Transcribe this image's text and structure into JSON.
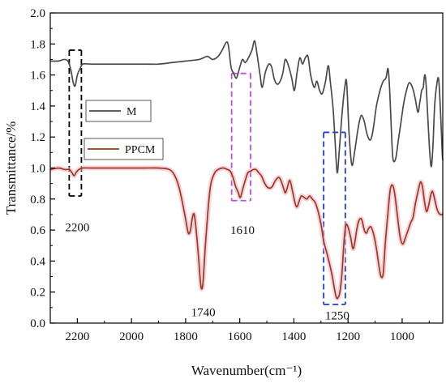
{
  "chart_data": {
    "type": "line",
    "xlabel": "Wavenumber(cm⁻¹)",
    "ylabel": "Transmittance/%",
    "xlim": [
      2300,
      850
    ],
    "ylim": [
      0.0,
      2.0
    ],
    "x_ticks": [
      2200,
      2000,
      1800,
      1600,
      1400,
      1200,
      1000
    ],
    "x_tick_labels": [
      "2200",
      "2000",
      "1800",
      "1600",
      "1400",
      "1200",
      "1000"
    ],
    "y_ticks": [
      0.0,
      0.2,
      0.4,
      0.6,
      0.8,
      1.0,
      1.2,
      1.4,
      1.6,
      1.8,
      2.0
    ],
    "y_tick_labels": [
      "0.0",
      "0.2",
      "0.4",
      "0.6",
      "0.8",
      "1.0",
      "1.2",
      "1.4",
      "1.6",
      "1.8",
      "2.0"
    ],
    "grid": false,
    "legend_position": "left",
    "series": [
      {
        "name": "M",
        "color": "#4a4a4a",
        "points": [
          [
            2300,
            1.69
          ],
          [
            2270,
            1.69
          ],
          [
            2250,
            1.7
          ],
          [
            2235,
            1.69
          ],
          [
            2225,
            1.64
          ],
          [
            2215,
            1.55
          ],
          [
            2208,
            1.53
          ],
          [
            2200,
            1.6
          ],
          [
            2190,
            1.64
          ],
          [
            2180,
            1.67
          ],
          [
            2150,
            1.67
          ],
          [
            2100,
            1.67
          ],
          [
            2050,
            1.67
          ],
          [
            2000,
            1.67
          ],
          [
            1950,
            1.67
          ],
          [
            1900,
            1.67
          ],
          [
            1850,
            1.68
          ],
          [
            1800,
            1.69
          ],
          [
            1750,
            1.7
          ],
          [
            1720,
            1.72
          ],
          [
            1700,
            1.7
          ],
          [
            1680,
            1.72
          ],
          [
            1665,
            1.76
          ],
          [
            1650,
            1.81
          ],
          [
            1642,
            1.79
          ],
          [
            1632,
            1.65
          ],
          [
            1622,
            1.61
          ],
          [
            1612,
            1.58
          ],
          [
            1600,
            1.65
          ],
          [
            1590,
            1.7
          ],
          [
            1580,
            1.68
          ],
          [
            1568,
            1.71
          ],
          [
            1555,
            1.76
          ],
          [
            1545,
            1.82
          ],
          [
            1535,
            1.72
          ],
          [
            1525,
            1.6
          ],
          [
            1517,
            1.52
          ],
          [
            1505,
            1.62
          ],
          [
            1492,
            1.67
          ],
          [
            1482,
            1.65
          ],
          [
            1472,
            1.57
          ],
          [
            1460,
            1.54
          ],
          [
            1448,
            1.57
          ],
          [
            1440,
            1.62
          ],
          [
            1432,
            1.7
          ],
          [
            1420,
            1.66
          ],
          [
            1408,
            1.58
          ],
          [
            1398,
            1.5
          ],
          [
            1388,
            1.62
          ],
          [
            1378,
            1.71
          ],
          [
            1368,
            1.67
          ],
          [
            1358,
            1.71
          ],
          [
            1348,
            1.72
          ],
          [
            1338,
            1.6
          ],
          [
            1325,
            1.52
          ],
          [
            1315,
            1.56
          ],
          [
            1305,
            1.5
          ],
          [
            1295,
            1.48
          ],
          [
            1283,
            1.56
          ],
          [
            1273,
            1.66
          ],
          [
            1265,
            1.55
          ],
          [
            1255,
            1.38
          ],
          [
            1248,
            1.18
          ],
          [
            1240,
            0.97
          ],
          [
            1232,
            1.12
          ],
          [
            1222,
            1.35
          ],
          [
            1212,
            1.52
          ],
          [
            1205,
            1.55
          ],
          [
            1196,
            1.22
          ],
          [
            1186,
            1.02
          ],
          [
            1176,
            1.1
          ],
          [
            1166,
            1.22
          ],
          [
            1158,
            1.3
          ],
          [
            1150,
            1.34
          ],
          [
            1140,
            1.3
          ],
          [
            1130,
            1.22
          ],
          [
            1118,
            1.18
          ],
          [
            1108,
            1.24
          ],
          [
            1095,
            1.4
          ],
          [
            1082,
            1.5
          ],
          [
            1070,
            1.56
          ],
          [
            1060,
            1.58
          ],
          [
            1052,
            1.64
          ],
          [
            1046,
            1.5
          ],
          [
            1040,
            1.25
          ],
          [
            1034,
            1.06
          ],
          [
            1024,
            1.06
          ],
          [
            1014,
            1.18
          ],
          [
            1004,
            1.3
          ],
          [
            994,
            1.42
          ],
          [
            984,
            1.5
          ],
          [
            974,
            1.55
          ],
          [
            962,
            1.52
          ],
          [
            952,
            1.45
          ],
          [
            942,
            1.36
          ],
          [
            935,
            1.42
          ],
          [
            928,
            1.5
          ],
          [
            922,
            1.52
          ],
          [
            917,
            1.6
          ],
          [
            912,
            1.55
          ],
          [
            905,
            1.32
          ],
          [
            898,
            1.1
          ],
          [
            892,
            1.01
          ],
          [
            886,
            1.15
          ],
          [
            880,
            1.4
          ],
          [
            872,
            1.54
          ],
          [
            865,
            1.57
          ],
          [
            858,
            1.35
          ],
          [
            852,
            1.1
          ],
          [
            850,
            1.05
          ]
        ]
      },
      {
        "name": "PPCM",
        "color": "#9b3a1f",
        "points": [
          [
            2300,
            0.99
          ],
          [
            2270,
            1.0
          ],
          [
            2245,
            0.99
          ],
          [
            2230,
            0.99
          ],
          [
            2220,
            0.97
          ],
          [
            2212,
            0.95
          ],
          [
            2205,
            0.97
          ],
          [
            2195,
            0.99
          ],
          [
            2180,
            1.0
          ],
          [
            2150,
            1.0
          ],
          [
            2100,
            1.0
          ],
          [
            2050,
            1.0
          ],
          [
            2000,
            1.0
          ],
          [
            1950,
            1.0
          ],
          [
            1900,
            1.0
          ],
          [
            1860,
            0.99
          ],
          [
            1840,
            0.95
          ],
          [
            1825,
            0.88
          ],
          [
            1812,
            0.78
          ],
          [
            1800,
            0.67
          ],
          [
            1790,
            0.58
          ],
          [
            1782,
            0.6
          ],
          [
            1775,
            0.68
          ],
          [
            1768,
            0.7
          ],
          [
            1760,
            0.58
          ],
          [
            1752,
            0.42
          ],
          [
            1745,
            0.26
          ],
          [
            1740,
            0.22
          ],
          [
            1735,
            0.28
          ],
          [
            1725,
            0.55
          ],
          [
            1710,
            0.86
          ],
          [
            1695,
            0.96
          ],
          [
            1680,
            0.99
          ],
          [
            1660,
            1.0
          ],
          [
            1645,
            0.99
          ],
          [
            1635,
            0.98
          ],
          [
            1625,
            0.94
          ],
          [
            1615,
            0.88
          ],
          [
            1605,
            0.84
          ],
          [
            1598,
            0.81
          ],
          [
            1588,
            0.87
          ],
          [
            1578,
            0.93
          ],
          [
            1570,
            0.97
          ],
          [
            1560,
            0.98
          ],
          [
            1550,
            0.99
          ],
          [
            1540,
            0.99
          ],
          [
            1530,
            0.97
          ],
          [
            1520,
            0.95
          ],
          [
            1510,
            0.91
          ],
          [
            1500,
            0.88
          ],
          [
            1490,
            0.87
          ],
          [
            1480,
            0.88
          ],
          [
            1468,
            0.92
          ],
          [
            1456,
            0.94
          ],
          [
            1448,
            0.92
          ],
          [
            1440,
            0.88
          ],
          [
            1432,
            0.84
          ],
          [
            1425,
            0.87
          ],
          [
            1415,
            0.92
          ],
          [
            1405,
            0.85
          ],
          [
            1395,
            0.77
          ],
          [
            1388,
            0.75
          ],
          [
            1380,
            0.79
          ],
          [
            1372,
            0.82
          ],
          [
            1362,
            0.81
          ],
          [
            1352,
            0.8
          ],
          [
            1342,
            0.82
          ],
          [
            1332,
            0.8
          ],
          [
            1322,
            0.78
          ],
          [
            1312,
            0.73
          ],
          [
            1300,
            0.64
          ],
          [
            1290,
            0.53
          ],
          [
            1278,
            0.45
          ],
          [
            1268,
            0.38
          ],
          [
            1258,
            0.3
          ],
          [
            1250,
            0.22
          ],
          [
            1244,
            0.17
          ],
          [
            1238,
            0.16
          ],
          [
            1230,
            0.2
          ],
          [
            1222,
            0.33
          ],
          [
            1215,
            0.52
          ],
          [
            1208,
            0.63
          ],
          [
            1200,
            0.62
          ],
          [
            1190,
            0.55
          ],
          [
            1182,
            0.48
          ],
          [
            1175,
            0.52
          ],
          [
            1168,
            0.6
          ],
          [
            1160,
            0.66
          ],
          [
            1150,
            0.67
          ],
          [
            1140,
            0.6
          ],
          [
            1132,
            0.58
          ],
          [
            1124,
            0.61
          ],
          [
            1115,
            0.62
          ],
          [
            1105,
            0.57
          ],
          [
            1095,
            0.48
          ],
          [
            1085,
            0.36
          ],
          [
            1078,
            0.3
          ],
          [
            1070,
            0.32
          ],
          [
            1062,
            0.52
          ],
          [
            1052,
            0.72
          ],
          [
            1044,
            0.86
          ],
          [
            1036,
            0.89
          ],
          [
            1028,
            0.84
          ],
          [
            1018,
            0.7
          ],
          [
            1008,
            0.56
          ],
          [
            998,
            0.51
          ],
          [
            988,
            0.55
          ],
          [
            978,
            0.6
          ],
          [
            968,
            0.65
          ],
          [
            960,
            0.68
          ],
          [
            950,
            0.78
          ],
          [
            940,
            0.86
          ],
          [
            932,
            0.91
          ],
          [
            925,
            0.88
          ],
          [
            918,
            0.79
          ],
          [
            910,
            0.72
          ],
          [
            902,
            0.76
          ],
          [
            895,
            0.82
          ],
          [
            888,
            0.85
          ],
          [
            880,
            0.8
          ],
          [
            872,
            0.74
          ],
          [
            865,
            0.71
          ],
          [
            858,
            0.7
          ],
          [
            850,
            0.7
          ]
        ]
      }
    ],
    "annotations": [
      {
        "text": "2200",
        "x": 2200,
        "y": 0.62
      },
      {
        "text": "1610",
        "x": 1590,
        "y": 0.6
      },
      {
        "text": "1740",
        "x": 1735,
        "y": 0.07
      },
      {
        "text": "1250",
        "x": 1240,
        "y": 0.05
      }
    ],
    "highlight_boxes": [
      {
        "label": "2200",
        "color": "#000000",
        "x0": 2230,
        "x1": 2185,
        "y0": 0.82,
        "y1": 1.76
      },
      {
        "label": "1610",
        "color": "#c04fe0",
        "x0": 1630,
        "x1": 1560,
        "y0": 0.79,
        "y1": 1.61
      },
      {
        "label": "1250",
        "color": "#1f3fd6",
        "x0": 1290,
        "x1": 1210,
        "y0": 0.12,
        "y1": 1.23
      }
    ]
  }
}
